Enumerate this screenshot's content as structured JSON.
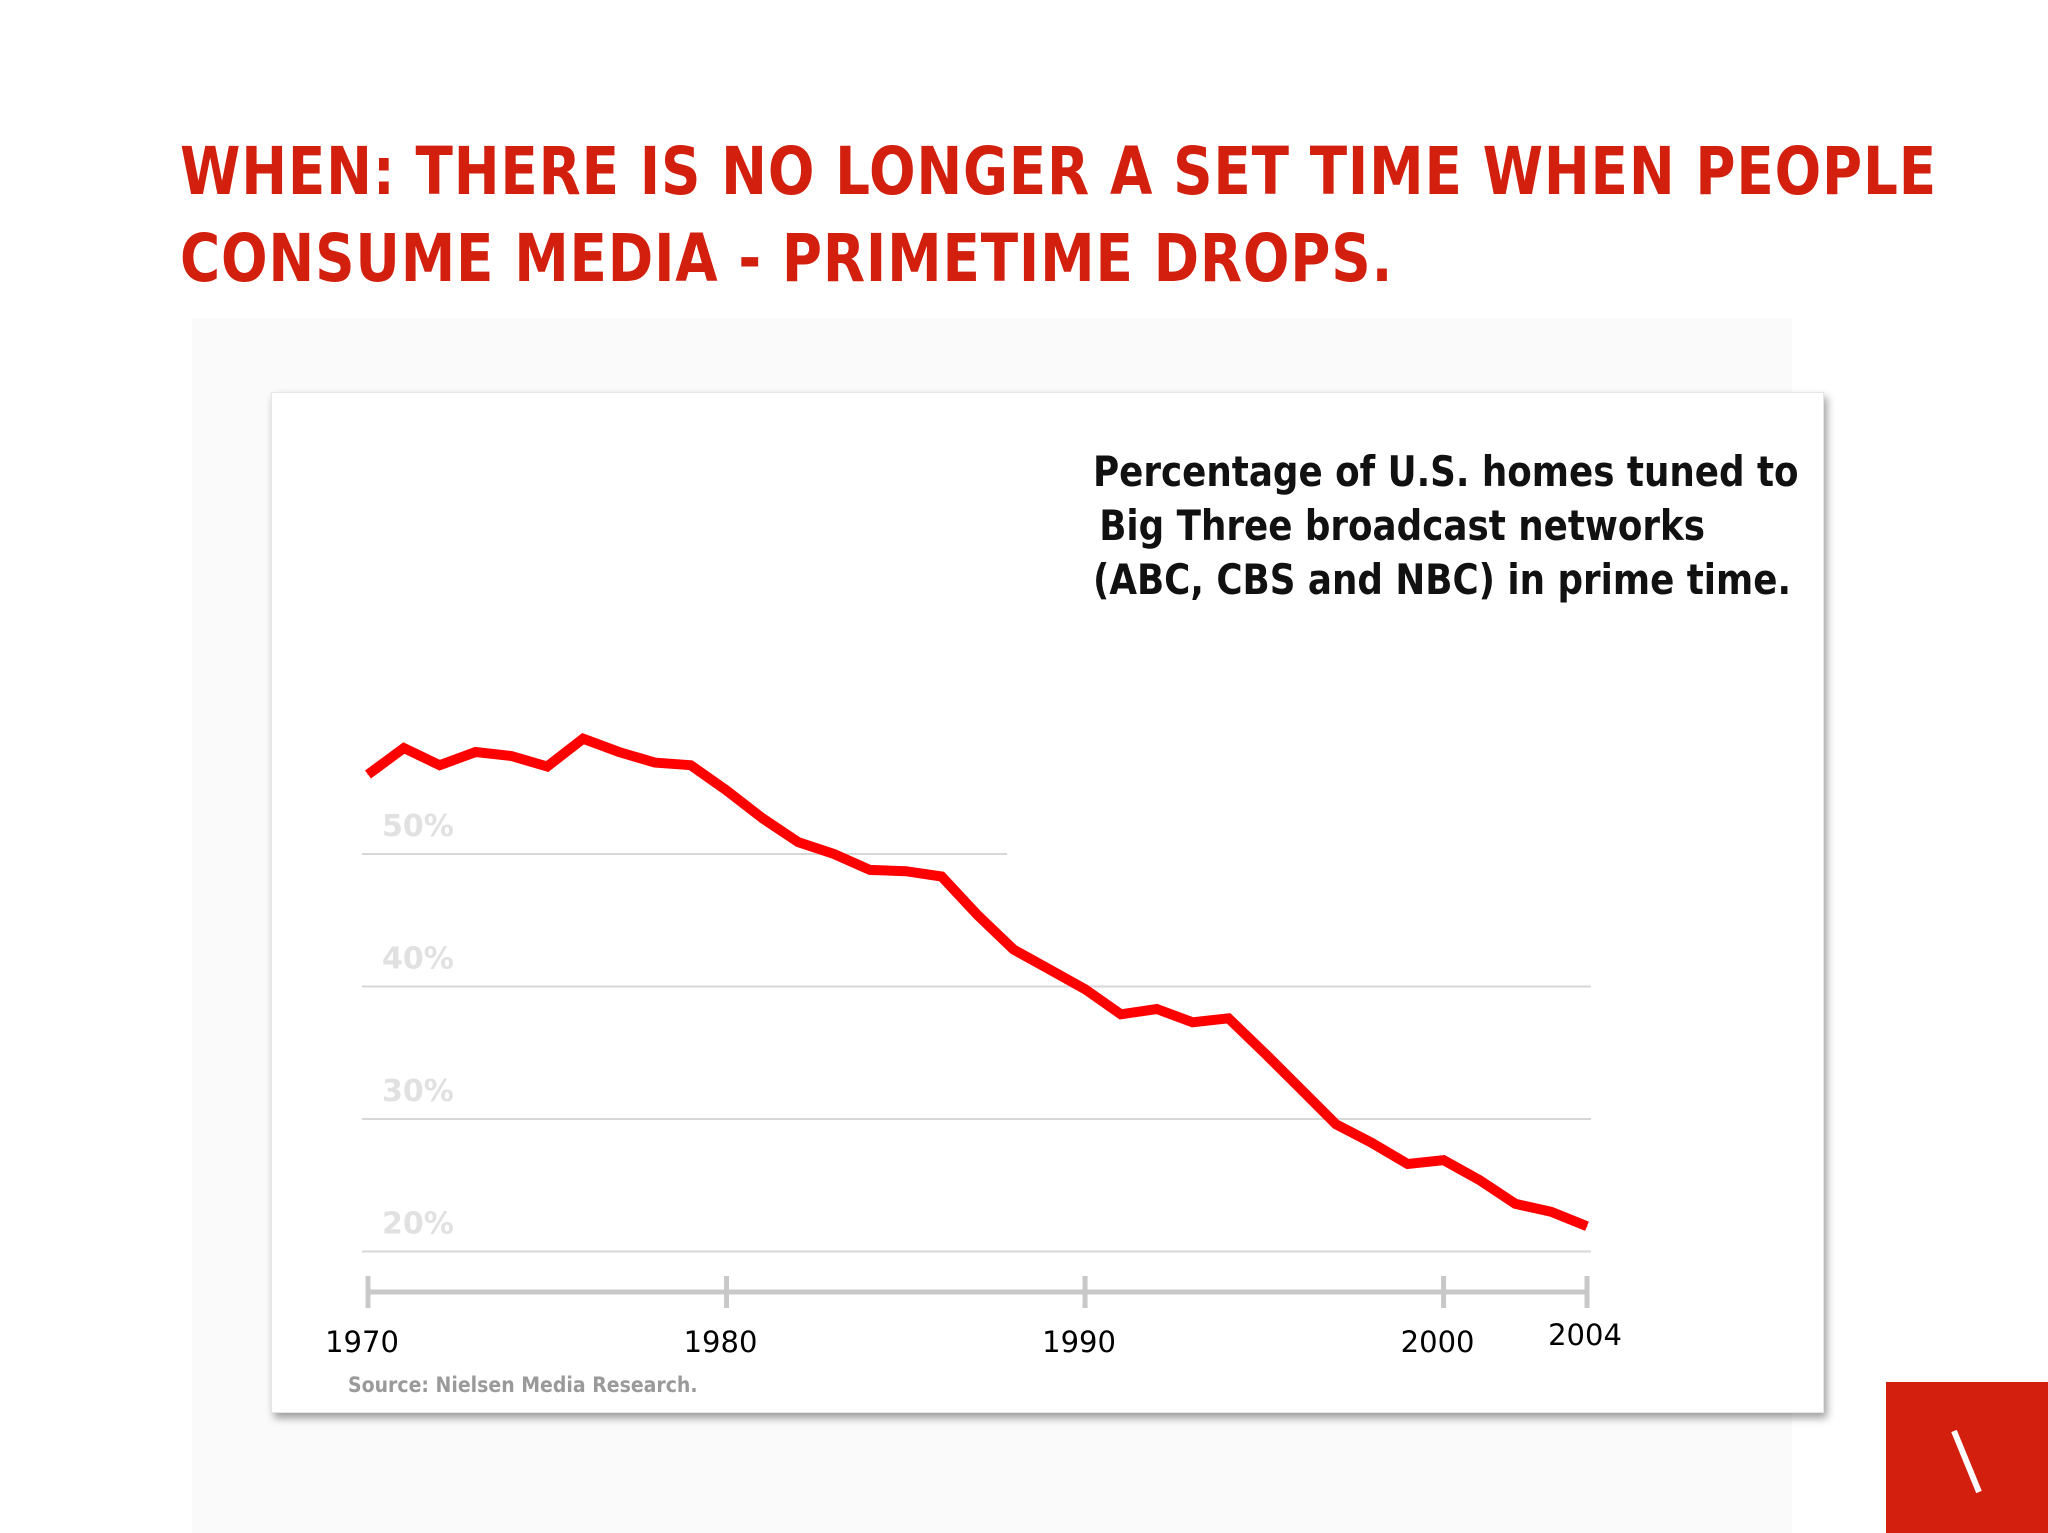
{
  "title": {
    "line1": "WHEN: THERE IS NO LONGER A SET TIME WHEN PEOPLE",
    "line2": "CONSUME MEDIA - PRIMETIME DROPS."
  },
  "chart_caption": {
    "line1": "Percentage of U.S. homes tuned to",
    "line2": "Big Three broadcast networks",
    "line3": "(ABC, CBS and NBC) in prime time."
  },
  "source": "Source: Nielsen Media Research.",
  "colors": {
    "title": "#d21f0e",
    "line": "#ff0000",
    "grid": "#d7d7d7",
    "axis": "#c8c8c8",
    "y_tick_text": "#e1e1e1",
    "logo_bg": "#d21f0e"
  },
  "logo_icon": "backslash-mark-icon",
  "chart_data": {
    "type": "line",
    "x_ticks": [
      1970,
      1980,
      1990,
      2000,
      2004
    ],
    "x_tick_labels": [
      "1970",
      "1980",
      "1990",
      "2000",
      "2004"
    ],
    "y_ticks": [
      20,
      30,
      40,
      50
    ],
    "y_tick_labels": [
      "20%",
      "30%",
      "40%",
      "50%"
    ],
    "xlim": [
      1970,
      2004
    ],
    "ylim": [
      10,
      60
    ],
    "grid": true,
    "legend": "none",
    "series": [
      {
        "x": [
          1970,
          1971,
          1972,
          1973,
          1974,
          1975,
          1976,
          1977,
          1978,
          1979,
          1980,
          1981,
          1982,
          1983,
          1984,
          1985,
          1986,
          1987,
          1988,
          1989,
          1990,
          1991,
          1992,
          1993,
          1994,
          1995,
          1996,
          1997,
          1998,
          1999,
          2000,
          2001,
          2002,
          2003,
          2004
        ],
        "values": [
          56,
          58,
          56.7,
          57.7,
          57.4,
          56.6,
          58.7,
          57.7,
          56.9,
          56.7,
          54.8,
          52.7,
          50.9,
          50,
          48.8,
          48.7,
          48.3,
          45.4,
          42.8,
          41.3,
          39.8,
          37.9,
          38.3,
          37.3,
          37.6,
          35,
          32.3,
          29.6,
          28.2,
          26.6,
          26.9,
          25.4,
          23.6,
          23,
          21.9
        ]
      }
    ]
  }
}
